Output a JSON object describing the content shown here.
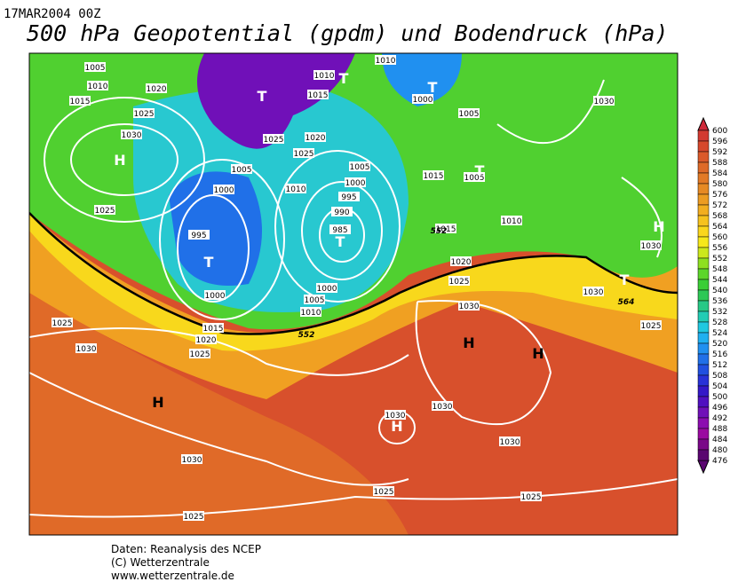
{
  "header": {
    "date": "17MAR2004 00Z",
    "title": "500 hPa Geopotential (gpdm) und Bodendruck (hPa)"
  },
  "map": {
    "pressure_labels": [
      1005,
      1010,
      1015,
      1020,
      1025,
      1030,
      1025,
      995,
      1000,
      1005,
      1025,
      1020,
      1025,
      1010,
      1005,
      1000,
      995,
      990,
      985,
      1000,
      1000,
      1005,
      1010,
      1015,
      1020,
      1025,
      1025,
      1030,
      1010,
      1015,
      1010,
      1000,
      1005,
      1015,
      1005,
      1015,
      1010,
      1020,
      1025,
      1030,
      1030,
      1030,
      1025,
      1030,
      1030,
      1030,
      1030,
      1025,
      1025,
      1030,
      1025
    ],
    "centers": [
      "H",
      "T",
      "T",
      "T",
      "T",
      "T",
      "T",
      "H",
      "H",
      "H",
      "T",
      "H",
      "H"
    ],
    "contour_labels": [
      552,
      552,
      564
    ]
  },
  "legend": {
    "values": [
      600,
      596,
      592,
      588,
      584,
      580,
      576,
      572,
      568,
      564,
      560,
      556,
      552,
      548,
      544,
      540,
      536,
      532,
      528,
      524,
      520,
      516,
      512,
      508,
      504,
      500,
      496,
      492,
      488,
      484,
      480,
      476
    ],
    "colors": [
      "#d02a3a",
      "#d23a30",
      "#d6482c",
      "#da5a2a",
      "#de6a28",
      "#e27a26",
      "#e68a24",
      "#ec9c22",
      "#f2ae20",
      "#f6c21e",
      "#fad61c",
      "#f6e81a",
      "#cce81c",
      "#8ee020",
      "#5cd62a",
      "#3ace36",
      "#2cc856",
      "#26c886",
      "#22ccb4",
      "#20c8e0",
      "#20b0f0",
      "#2090f0",
      "#2070e8",
      "#2050e0",
      "#2832d8",
      "#3418c8",
      "#5010c0",
      "#7010b8",
      "#8c0cb0",
      "#9a0aa0",
      "#7a0888",
      "#5a0670"
    ]
  },
  "footer": {
    "lines": [
      "Daten: Reanalysis des NCEP",
      "(C) Wetterzentrale",
      "www.wetterzentrale.de"
    ]
  }
}
